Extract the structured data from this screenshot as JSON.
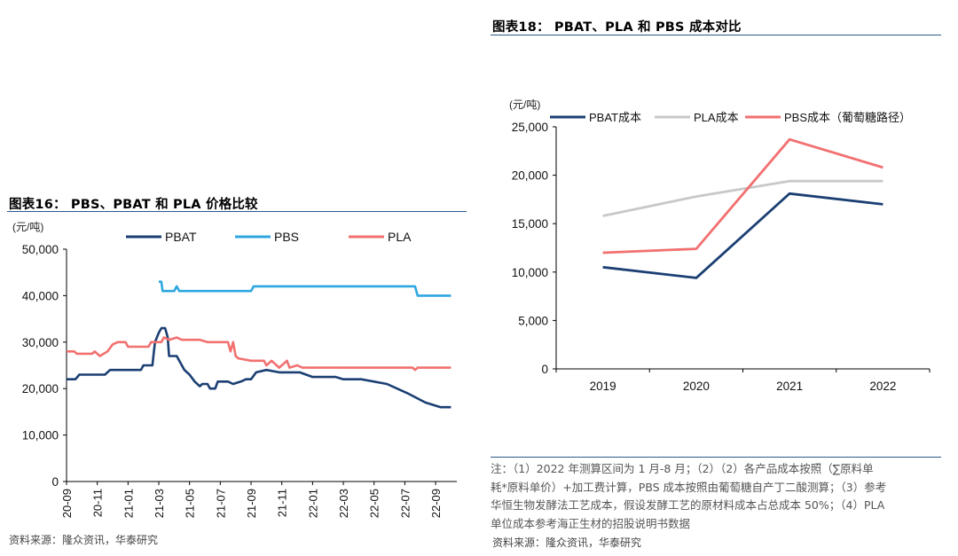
{
  "left": {
    "title": "图表16：  PBS、PBAT 和 PLA 价格比较",
    "source": "资料来源：隆众资讯，华泰研究",
    "chart_data": {
      "type": "line",
      "unit": "(元/吨)",
      "ylim": [
        0,
        50000
      ],
      "yticks": [
        "0",
        "10,000",
        "20,000",
        "30,000",
        "40,000",
        "50,000"
      ],
      "ytick_values": [
        0,
        10000,
        20000,
        30000,
        40000,
        50000
      ],
      "x_start": "2020-09",
      "x_end": "2022-09",
      "xticks": [
        "20-09",
        "20-11",
        "21-01",
        "21-03",
        "21-05",
        "21-07",
        "21-09",
        "21-11",
        "22-01",
        "22-03",
        "22-05",
        "22-07",
        "22-09"
      ],
      "series": [
        {
          "name": "PBAT",
          "color": "#1b3f73",
          "points": [
            [
              0,
              22000
            ],
            [
              0.35,
              22000
            ],
            [
              0.5,
              23000
            ],
            [
              1.5,
              23000
            ],
            [
              1.7,
              24000
            ],
            [
              2.9,
              24000
            ],
            [
              3.0,
              25000
            ],
            [
              3.35,
              25000
            ],
            [
              3.45,
              30000
            ],
            [
              3.6,
              32000
            ],
            [
              3.7,
              33000
            ],
            [
              3.85,
              33000
            ],
            [
              3.95,
              31000
            ],
            [
              4.0,
              27000
            ],
            [
              4.3,
              27000
            ],
            [
              4.4,
              26000
            ],
            [
              4.6,
              24000
            ],
            [
              4.8,
              23000
            ],
            [
              5.0,
              21500
            ],
            [
              5.2,
              20500
            ],
            [
              5.3,
              21000
            ],
            [
              5.5,
              21000
            ],
            [
              5.6,
              20000
            ],
            [
              5.8,
              20000
            ],
            [
              5.9,
              21500
            ],
            [
              6.3,
              21500
            ],
            [
              6.5,
              21000
            ],
            [
              6.8,
              21500
            ],
            [
              7.0,
              22000
            ],
            [
              7.2,
              22000
            ],
            [
              7.4,
              23500
            ],
            [
              7.8,
              24000
            ],
            [
              8.3,
              23500
            ],
            [
              9.1,
              23500
            ],
            [
              9.6,
              22500
            ],
            [
              10.5,
              22500
            ],
            [
              10.8,
              22000
            ],
            [
              11.5,
              22000
            ],
            [
              12.5,
              21000
            ],
            [
              13.3,
              19000
            ],
            [
              14.0,
              17000
            ],
            [
              14.6,
              16000
            ],
            [
              15.0,
              16000
            ]
          ]
        },
        {
          "name": "PBS",
          "color": "#2ea7e0",
          "points": [
            [
              3.6,
              43000
            ],
            [
              3.7,
              43000
            ],
            [
              3.75,
              41000
            ],
            [
              4.2,
              41000
            ],
            [
              4.3,
              42000
            ],
            [
              4.4,
              41000
            ],
            [
              7.2,
              41000
            ],
            [
              7.3,
              42000
            ],
            [
              13.6,
              42000
            ],
            [
              13.7,
              40000
            ],
            [
              15.0,
              40000
            ]
          ]
        },
        {
          "name": "PLA",
          "color": "#f27070",
          "points": [
            [
              0,
              28000
            ],
            [
              0.3,
              28000
            ],
            [
              0.4,
              27500
            ],
            [
              1.0,
              27500
            ],
            [
              1.1,
              28000
            ],
            [
              1.3,
              27000
            ],
            [
              1.6,
              28000
            ],
            [
              1.8,
              29500
            ],
            [
              2.0,
              30000
            ],
            [
              2.3,
              30000
            ],
            [
              2.4,
              29000
            ],
            [
              3.2,
              29000
            ],
            [
              3.3,
              30000
            ],
            [
              3.7,
              30000
            ],
            [
              3.8,
              31000
            ],
            [
              4.0,
              30500
            ],
            [
              4.3,
              31000
            ],
            [
              4.5,
              30500
            ],
            [
              5.2,
              30500
            ],
            [
              5.5,
              30000
            ],
            [
              6.3,
              30000
            ],
            [
              6.4,
              28000
            ],
            [
              6.5,
              30000
            ],
            [
              6.6,
              27000
            ],
            [
              6.7,
              26500
            ],
            [
              7.2,
              26000
            ],
            [
              7.7,
              26000
            ],
            [
              7.8,
              25000
            ],
            [
              8.0,
              26000
            ],
            [
              8.3,
              24500
            ],
            [
              8.6,
              26000
            ],
            [
              8.7,
              24500
            ],
            [
              9.0,
              25000
            ],
            [
              9.2,
              24500
            ],
            [
              13.5,
              24500
            ],
            [
              13.6,
              24000
            ],
            [
              13.7,
              24500
            ],
            [
              15.0,
              24500
            ]
          ]
        }
      ]
    }
  },
  "right": {
    "title": "图表18：  PBAT、PLA 和 PBS 成本对比",
    "notes": [
      "注：（1）2022 年测算区间为 1 月-8 月；（2）（2）各产品成本按照（∑原料单",
      "耗*原料单价）+加工费计算，PBS 成本按照由葡萄糖自产丁二酸测算；（3）参考",
      "华恒生物发酵法工艺成本，假设发酵工艺的原材料成本占总成本 50%；（4）PLA",
      "单位成本参考海正生材的招股说明书数据"
    ],
    "source": "资料来源：隆众资讯，华泰研究",
    "chart_data": {
      "type": "line",
      "unit": "(元/吨)",
      "categories": [
        "2019",
        "2020",
        "2021",
        "2022"
      ],
      "ylim": [
        0,
        25000
      ],
      "yticks": [
        "0",
        "5,000",
        "10,000",
        "15,000",
        "20,000",
        "25,000"
      ],
      "ytick_values": [
        0,
        5000,
        10000,
        15000,
        20000,
        25000
      ],
      "series": [
        {
          "name": "PBAT成本",
          "color": "#1b3f73",
          "values": [
            10500,
            9400,
            18100,
            17000
          ]
        },
        {
          "name": "PLA成本",
          "color": "#c8c8c8",
          "values": [
            15800,
            17800,
            19400,
            19400
          ]
        },
        {
          "name": "PBS成本（葡萄糖路径）",
          "color": "#f27070",
          "values": [
            12000,
            12400,
            23700,
            20800
          ]
        }
      ]
    }
  }
}
